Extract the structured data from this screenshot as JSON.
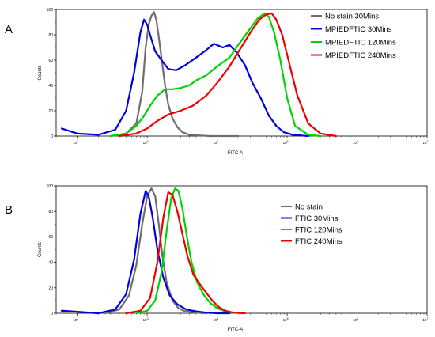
{
  "chart_data": [
    {
      "panel": "A",
      "type": "line",
      "xlabel": "FITC-A",
      "ylabel": "Counts",
      "xscale": "log",
      "xlim": [
        50,
        10000000
      ],
      "ylim": [
        0,
        100
      ],
      "xticks": [
        "10^2",
        "10^3",
        "10^4",
        "10^5",
        "10^6",
        "10^7"
      ],
      "yticks": [
        "0",
        "20",
        "40",
        "60",
        "80",
        "100"
      ],
      "legend_position": "top-right",
      "series": [
        {
          "name": "No stain 30Mins",
          "color": "#6e6e6e",
          "x": [
            300,
            500,
            700,
            850,
            950,
            1050,
            1150,
            1250,
            1350,
            1450,
            1600,
            1800,
            2000,
            2300,
            2700,
            3200,
            4000,
            5500,
            8000,
            20000
          ],
          "y": [
            0,
            2,
            10,
            35,
            70,
            88,
            95,
            98,
            92,
            80,
            62,
            40,
            25,
            14,
            7,
            3,
            1,
            0.5,
            0,
            0
          ]
        },
        {
          "name": "MPIEDFTIC  30Mins",
          "color": "#0000e0",
          "x": [
            60,
            100,
            200,
            350,
            500,
            650,
            800,
            900,
            1000,
            1100,
            1300,
            1600,
            2000,
            2600,
            3500,
            5000,
            7000,
            9000,
            12000,
            15000,
            19000,
            25000,
            32000,
            42000,
            55000,
            70000,
            90000,
            120000,
            200000
          ],
          "y": [
            6,
            2,
            1,
            5,
            20,
            50,
            82,
            92,
            88,
            80,
            67,
            60,
            53,
            52,
            56,
            62,
            68,
            73,
            70,
            72,
            66,
            56,
            42,
            30,
            16,
            8,
            3,
            1,
            0
          ]
        },
        {
          "name": "MPIEDFTIC  120Mins",
          "color": "#00d400",
          "x": [
            300,
            500,
            700,
            900,
            1100,
            1400,
            1800,
            2300,
            3000,
            4000,
            5000,
            7000,
            10000,
            15000,
            20000,
            28000,
            38000,
            48000,
            55000,
            65000,
            80000,
            100000,
            130000,
            200000,
            300000
          ],
          "y": [
            0,
            2,
            8,
            16,
            24,
            32,
            37,
            37,
            38,
            40,
            44,
            48,
            55,
            62,
            72,
            83,
            93,
            97,
            94,
            82,
            60,
            30,
            8,
            1,
            0
          ]
        },
        {
          "name": "MPIEDFTIC  240Mins",
          "color": "#ee0000",
          "x": [
            400,
            700,
            1000,
            1400,
            2000,
            3000,
            4500,
            7000,
            10000,
            15000,
            22000,
            30000,
            40000,
            50000,
            60000,
            70000,
            85000,
            110000,
            140000,
            200000,
            300000,
            500000
          ],
          "y": [
            0,
            2,
            6,
            12,
            17,
            20,
            24,
            32,
            42,
            55,
            70,
            82,
            92,
            96,
            97,
            92,
            80,
            55,
            32,
            10,
            2,
            0
          ]
        }
      ]
    },
    {
      "panel": "B",
      "type": "line",
      "xlabel": "FITC-A",
      "ylabel": "Counts",
      "xscale": "log",
      "xlim": [
        50,
        10000000
      ],
      "ylim": [
        0,
        100
      ],
      "xticks": [
        "10^2",
        "10^3",
        "10^4",
        "10^5",
        "10^6",
        "10^7"
      ],
      "yticks": [
        "0",
        "20",
        "40",
        "60",
        "80",
        "100"
      ],
      "legend_position": "center-right",
      "series": [
        {
          "name": "No stain",
          "color": "#6e6e6e",
          "x": [
            250,
            400,
            550,
            700,
            850,
            1000,
            1150,
            1300,
            1450,
            1650,
            1900,
            2300,
            2800,
            3500,
            5000,
            7000
          ],
          "y": [
            0,
            3,
            14,
            38,
            70,
            92,
            98,
            92,
            72,
            45,
            24,
            10,
            4,
            1.5,
            0.5,
            0
          ]
        },
        {
          "name": "FTIC  30Mins",
          "color": "#0000e0",
          "x": [
            60,
            200,
            350,
            500,
            650,
            800,
            950,
            1050,
            1200,
            1400,
            1700,
            2100,
            2700,
            3600,
            5000,
            7000,
            10000,
            15000
          ],
          "y": [
            2,
            0,
            3,
            15,
            42,
            78,
            96,
            92,
            75,
            50,
            28,
            14,
            7,
            3,
            1.5,
            0.5,
            0,
            0
          ]
        },
        {
          "name": "FTIC  120Mins",
          "color": "#00d400",
          "x": [
            700,
            1000,
            1300,
            1600,
            1900,
            2200,
            2500,
            2800,
            3200,
            3700,
            4300,
            5200,
            6500,
            8000,
            10000,
            13000,
            17000,
            25000
          ],
          "y": [
            0,
            2,
            10,
            32,
            65,
            90,
            98,
            96,
            82,
            60,
            40,
            24,
            14,
            8,
            4,
            1.5,
            0.5,
            0
          ]
        },
        {
          "name": "FTIC  240Mins",
          "color": "#ee0000",
          "x": [
            500,
            800,
            1100,
            1400,
            1700,
            2000,
            2300,
            2700,
            3200,
            3800,
            4600,
            5800,
            7000,
            8500,
            10500,
            13000,
            17000,
            25000
          ],
          "y": [
            0,
            2,
            12,
            40,
            75,
            95,
            93,
            80,
            62,
            44,
            30,
            22,
            16,
            10,
            5,
            2,
            0.5,
            0
          ]
        }
      ]
    }
  ]
}
